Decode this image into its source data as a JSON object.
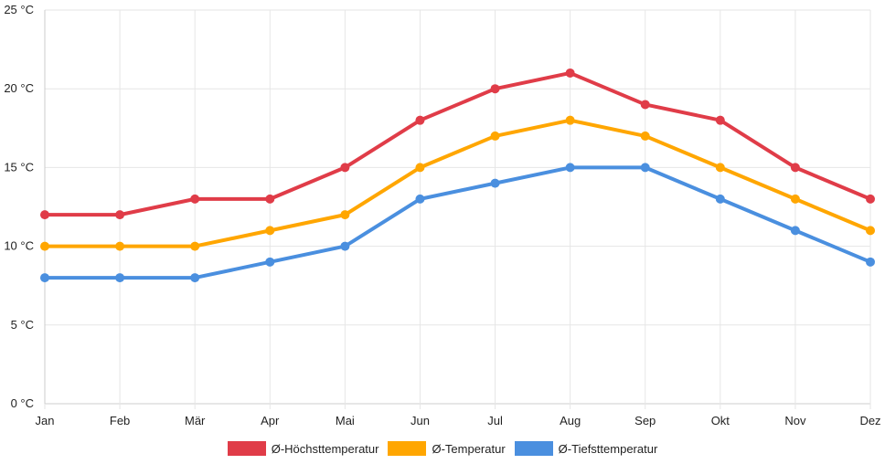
{
  "chart_data": {
    "type": "line",
    "categories": [
      "Jan",
      "Feb",
      "Mär",
      "Apr",
      "Mai",
      "Jun",
      "Jul",
      "Aug",
      "Sep",
      "Okt",
      "Nov",
      "Dez"
    ],
    "ylim": [
      0,
      25
    ],
    "yticks": [
      0,
      5,
      10,
      15,
      20,
      25
    ],
    "y_unit": "°C",
    "grid": true,
    "legend_position": "bottom",
    "series": [
      {
        "name": "Ø-Höchsttemperatur",
        "color": "#e03c48",
        "values": [
          12,
          12,
          13,
          13,
          15,
          18,
          20,
          21,
          19,
          18,
          15,
          13
        ]
      },
      {
        "name": "Ø-Temperatur",
        "color": "#ffa600",
        "values": [
          10,
          10,
          10,
          11,
          12,
          15,
          17,
          18,
          17,
          15,
          13,
          11
        ]
      },
      {
        "name": "Ø-Tiefsttemperatur",
        "color": "#4a8fdf",
        "values": [
          8,
          8,
          8,
          9,
          10,
          13,
          14,
          15,
          15,
          13,
          11,
          9
        ]
      }
    ]
  }
}
